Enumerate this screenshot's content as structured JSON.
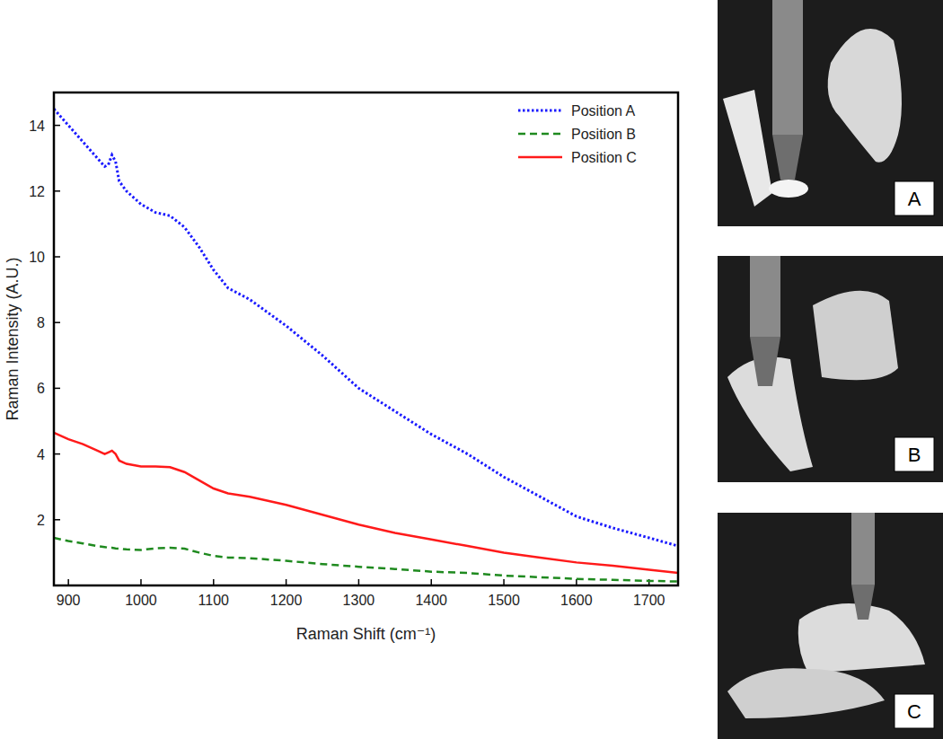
{
  "chart_data": {
    "type": "line",
    "x_label": "Raman Shift (cm⁻¹)",
    "y_label": "Raman Intensity (A.U.)",
    "x": [
      880,
      900,
      920,
      940,
      950,
      955,
      960,
      965,
      970,
      980,
      1000,
      1020,
      1040,
      1060,
      1080,
      1100,
      1120,
      1150,
      1200,
      1250,
      1300,
      1350,
      1400,
      1450,
      1500,
      1550,
      1600,
      1650,
      1700,
      1740
    ],
    "series": [
      {
        "name": "Position A",
        "color": "#1a1aff",
        "line_style": "dotted",
        "values": [
          14.5,
          14.0,
          13.5,
          13.0,
          12.75,
          12.8,
          13.1,
          12.9,
          12.3,
          12.0,
          11.6,
          11.35,
          11.25,
          10.9,
          10.3,
          9.6,
          9.05,
          8.7,
          7.9,
          7.0,
          6.0,
          5.3,
          4.6,
          4.0,
          3.3,
          2.7,
          2.1,
          1.75,
          1.45,
          1.2
        ]
      },
      {
        "name": "Position B",
        "color": "#1f8a1f",
        "line_style": "dashed",
        "values": [
          1.45,
          1.35,
          1.28,
          1.2,
          1.17,
          1.15,
          1.15,
          1.13,
          1.12,
          1.1,
          1.08,
          1.13,
          1.15,
          1.12,
          1.0,
          0.9,
          0.85,
          0.83,
          0.75,
          0.65,
          0.57,
          0.5,
          0.42,
          0.38,
          0.3,
          0.25,
          0.2,
          0.17,
          0.14,
          0.12
        ]
      },
      {
        "name": "Position C",
        "color": "#ff1a1a",
        "line_style": "solid",
        "values": [
          4.65,
          4.45,
          4.3,
          4.1,
          4.0,
          4.05,
          4.1,
          4.0,
          3.8,
          3.7,
          3.62,
          3.62,
          3.6,
          3.45,
          3.2,
          2.95,
          2.8,
          2.7,
          2.45,
          2.15,
          1.85,
          1.6,
          1.4,
          1.2,
          1.0,
          0.85,
          0.7,
          0.6,
          0.48,
          0.38
        ]
      }
    ],
    "xlim": [
      880,
      1740
    ],
    "ylim": [
      0,
      15
    ],
    "xticks": [
      900,
      1000,
      1100,
      1200,
      1300,
      1400,
      1500,
      1600,
      1700
    ],
    "yticks": [
      2,
      4,
      6,
      8,
      10,
      12,
      14
    ],
    "legend": "upper right",
    "grid": false
  },
  "photo_labels": [
    "A",
    "B",
    "C"
  ]
}
